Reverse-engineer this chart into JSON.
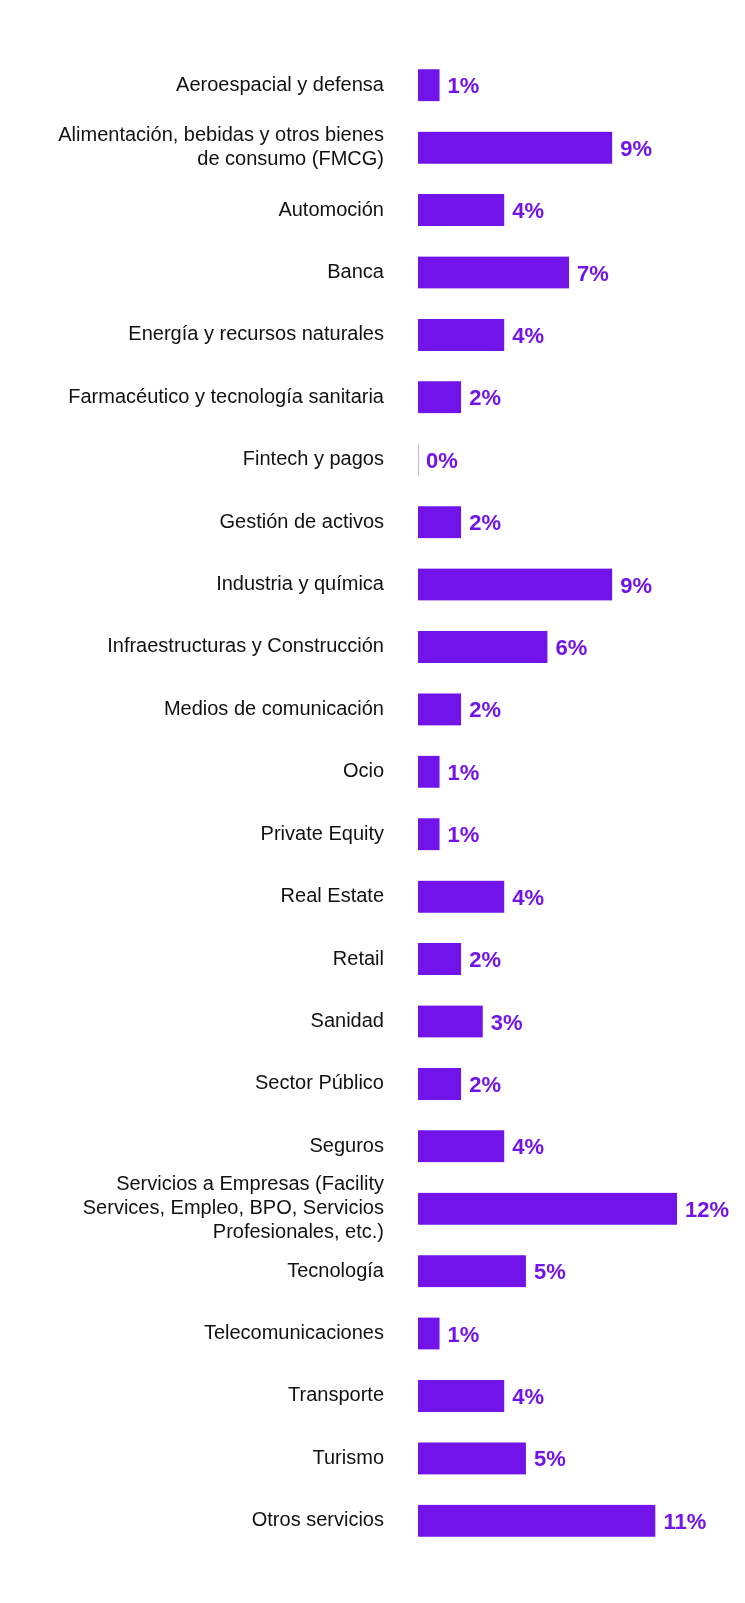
{
  "chart_data": {
    "type": "bar",
    "orientation": "horizontal",
    "value_labels": [
      "1%",
      "9%",
      "4%",
      "7%",
      "4%",
      "2%",
      "0%",
      "2%",
      "9%",
      "6%",
      "2%",
      "1%",
      "1%",
      "4%",
      "2%",
      "3%",
      "2%",
      "4%",
      "12%",
      "5%",
      "1%",
      "4%",
      "5%",
      "11%"
    ],
    "grid": false,
    "legend": false,
    "color": "#7213ea",
    "categories": [
      "Aeroespacial y defensa",
      "Alimentación, bebidas y otros bienes de consumo (FMCG)",
      "Automoción",
      "Banca",
      "Energía y recursos naturales",
      "Farmacéutico y tecnología sanitaria",
      "Fintech y pagos",
      "Gestión de activos",
      "Industria y química",
      "Infraestructuras y Construcción",
      "Medios de comunicación",
      "Ocio",
      "Private Equity",
      "Real Estate",
      "Retail",
      "Sanidad",
      "Sector Público",
      "Seguros",
      "Servicios a Empresas (Facility Services, Empleo, BPO, Servicios Profesionales, etc.)",
      "Tecnología",
      "Telecomunicaciones",
      "Transporte",
      "Turismo",
      "Otros servicios"
    ],
    "values": [
      1,
      9,
      4,
      7,
      4,
      2,
      0,
      2,
      9,
      6,
      2,
      1,
      1,
      4,
      2,
      3,
      2,
      4,
      12,
      5,
      1,
      4,
      5,
      11
    ]
  }
}
